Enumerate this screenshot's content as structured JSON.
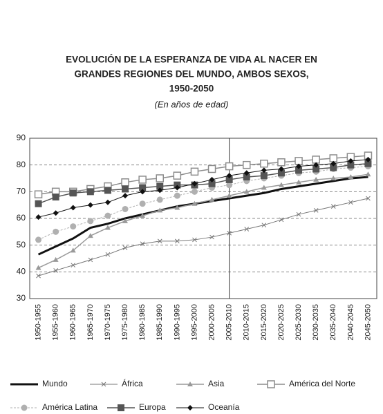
{
  "chart_data": {
    "type": "line",
    "title": [
      "EVOLUCIÓN DE LA ESPERANZA DE VIDA AL NACER EN",
      "GRANDES REGIONES DEL MUNDO, AMBOS SEXOS,",
      "1950-2050"
    ],
    "subtitle": "(En años de edad)",
    "categories": [
      "1950-1955",
      "1955-1960",
      "1960-1965",
      "1965-1970",
      "1970-1975",
      "1975-1980",
      "1980-1985",
      "1985-1990",
      "1990-1995",
      "1995-2000",
      "2000-2005",
      "2005-2010",
      "2010-2015",
      "2015-2020",
      "2020-2025",
      "2025-2030",
      "2030-2035",
      "2035-2040",
      "2040-2045",
      "2045-2050"
    ],
    "ylim": [
      30,
      90
    ],
    "yticks": [
      30,
      40,
      50,
      60,
      70,
      80,
      90
    ],
    "grid": true,
    "divider": "2005-2010",
    "series": [
      {
        "name": "Mundo",
        "color": "#111111",
        "marker": "none",
        "width": 3,
        "dash": false,
        "values": [
          46.5,
          49.5,
          52.5,
          56.5,
          58,
          60,
          61.5,
          63,
          64.5,
          65.5,
          66.5,
          67.5,
          68.5,
          69.5,
          71,
          72,
          73,
          74,
          75,
          75.5
        ]
      },
      {
        "name": "África",
        "color": "#777777",
        "marker": "x",
        "width": 1,
        "dash": false,
        "values": [
          38.5,
          40.5,
          42.5,
          44.5,
          46.5,
          49,
          50.5,
          51.5,
          51.5,
          52,
          53,
          54.5,
          56,
          57.5,
          59.5,
          61.5,
          63,
          64.5,
          66,
          67.5
        ]
      },
      {
        "name": "Asia",
        "color": "#999999",
        "marker": "triangle",
        "width": 1.5,
        "dash": false,
        "values": [
          41.5,
          44.5,
          48,
          53.5,
          56.5,
          59,
          61,
          63,
          64,
          65.5,
          67,
          68.5,
          70,
          71.5,
          72.5,
          73.5,
          74.5,
          75,
          75.5,
          76.5
        ]
      },
      {
        "name": "América del Norte",
        "color": "#8c8c8c",
        "marker": "square-open",
        "width": 1.5,
        "dash": false,
        "values": [
          69,
          70,
          70,
          71,
          72,
          73.5,
          74.5,
          75,
          76,
          77.5,
          78.5,
          79.5,
          80,
          80.5,
          81,
          81.5,
          82,
          82.5,
          83,
          83.5
        ]
      },
      {
        "name": "América Latina",
        "color": "#b0b0b0",
        "marker": "circle",
        "width": 1,
        "dash": true,
        "values": [
          52,
          55,
          57,
          59,
          61,
          63.5,
          65.5,
          67,
          68.5,
          70,
          71.5,
          72.5,
          74,
          75,
          76,
          77,
          77.5,
          78.5,
          79,
          79.5
        ]
      },
      {
        "name": "Europa",
        "color": "#555555",
        "marker": "square",
        "width": 1.5,
        "dash": false,
        "values": [
          65.5,
          68,
          69.5,
          70,
          70.5,
          71,
          71.5,
          72,
          72.5,
          72.5,
          73,
          74.5,
          75.5,
          76,
          77,
          78,
          78.5,
          79,
          80,
          80.5
        ]
      },
      {
        "name": "Oceanía",
        "color": "#111111",
        "marker": "diamond",
        "width": 1,
        "dash": false,
        "values": [
          60.5,
          62,
          64,
          65,
          66,
          68.5,
          70,
          70.5,
          71.5,
          73,
          74.5,
          76,
          77,
          78,
          78.5,
          79.5,
          80,
          80.5,
          81.5,
          82
        ]
      }
    ]
  }
}
